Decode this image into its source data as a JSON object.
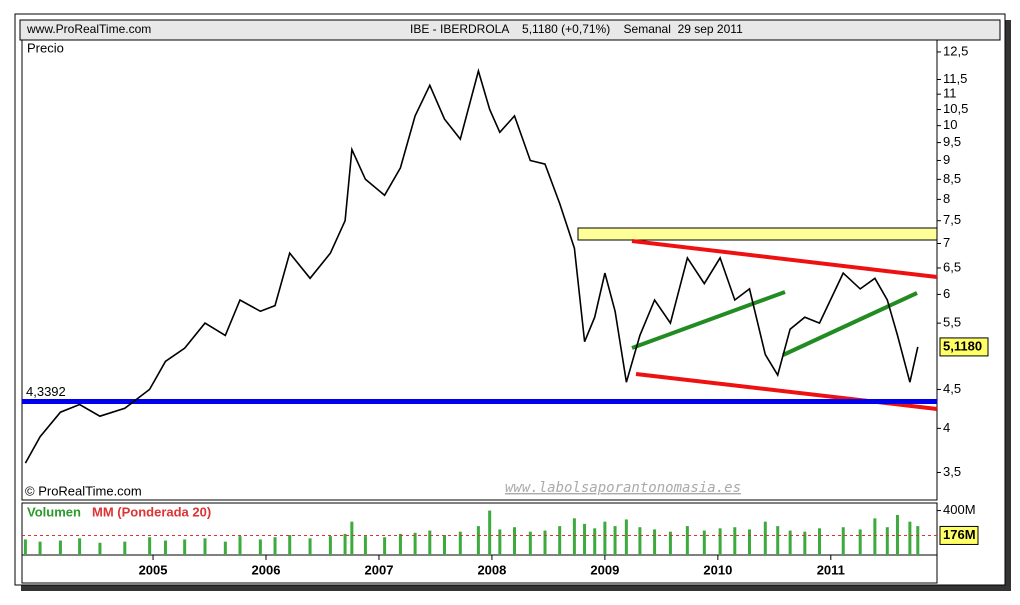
{
  "header": {
    "left": "www.ProRealTime.com",
    "center": "IBE - IBERDROLA    5,1180 (+0,71%)    Semanal  29 sep 2011",
    "copyright": "© ProRealTime.com",
    "watermark": "www.labolsaporantonomasia.es"
  },
  "chart_data": [
    {
      "type": "line",
      "title": "Precio",
      "color": "#000000",
      "log_scale": true,
      "x": [
        2003.87,
        2004.0,
        2004.18,
        2004.35,
        2004.53,
        2004.75,
        2004.97,
        2005.11,
        2005.28,
        2005.46,
        2005.64,
        2005.77,
        2005.95,
        2006.08,
        2006.21,
        2006.39,
        2006.57,
        2006.7,
        2006.76,
        2006.88,
        2007.05,
        2007.19,
        2007.32,
        2007.45,
        2007.58,
        2007.72,
        2007.88,
        2007.98,
        2008.07,
        2008.2,
        2008.34,
        2008.47,
        2008.6,
        2008.73,
        2008.82,
        2008.91,
        2009.0,
        2009.09,
        2009.19,
        2009.31,
        2009.44,
        2009.58,
        2009.73,
        2009.88,
        2010.02,
        2010.15,
        2010.28,
        2010.42,
        2010.53,
        2010.64,
        2010.77,
        2010.9,
        2011.11,
        2011.26,
        2011.39,
        2011.5,
        2011.59,
        2011.7,
        2011.77
      ],
      "values": [
        3.6,
        3.9,
        4.2,
        4.3,
        4.15,
        4.25,
        4.5,
        4.9,
        5.1,
        5.5,
        5.3,
        5.9,
        5.7,
        5.8,
        6.8,
        6.3,
        6.8,
        7.5,
        9.3,
        8.5,
        8.1,
        8.8,
        10.3,
        11.3,
        10.2,
        9.6,
        11.8,
        10.5,
        9.8,
        10.3,
        9.0,
        8.9,
        7.9,
        6.9,
        5.2,
        5.6,
        6.4,
        5.7,
        4.6,
        5.3,
        5.9,
        5.5,
        6.7,
        6.2,
        6.7,
        5.9,
        6.1,
        5.0,
        4.7,
        5.4,
        5.6,
        5.5,
        6.4,
        6.1,
        6.3,
        5.9,
        5.3,
        4.6,
        5.118
      ],
      "xlim": [
        2003.84,
        2011.94
      ],
      "ylim": [
        3.22,
        12.96
      ],
      "yticks": [
        {
          "value": 3.5,
          "label": "3,5"
        },
        4,
        {
          "value": 4.5,
          "label": "4,5"
        },
        {
          "value": 5.5,
          "label": "5,5"
        },
        6,
        {
          "value": 6.5,
          "label": "6,5"
        },
        7,
        {
          "value": 7.5,
          "label": "7,5"
        },
        8,
        {
          "value": 8.5,
          "label": "8,5"
        },
        9,
        {
          "value": 9.5,
          "label": "9,5"
        },
        10,
        {
          "value": 10.5,
          "label": "10,5"
        },
        11,
        {
          "value": 11.5,
          "label": "11,5"
        },
        {
          "value": 12.5,
          "label": "12,5"
        }
      ],
      "support": {
        "value": 4.3392,
        "label": "4,3392"
      },
      "support_color": "#0000ee",
      "last": {
        "value": 5.118,
        "label": "5,1180"
      }
    },
    {
      "type": "bar",
      "title": "Volumen",
      "subtitle": "MM (Ponderada 20)",
      "color": "#3caa3c",
      "x": [
        2003.87,
        2004.0,
        2004.18,
        2004.35,
        2004.53,
        2004.75,
        2004.97,
        2005.11,
        2005.28,
        2005.46,
        2005.64,
        2005.77,
        2005.95,
        2006.08,
        2006.21,
        2006.39,
        2006.57,
        2006.7,
        2006.76,
        2006.88,
        2007.05,
        2007.19,
        2007.32,
        2007.45,
        2007.58,
        2007.72,
        2007.88,
        2007.98,
        2008.07,
        2008.2,
        2008.34,
        2008.47,
        2008.6,
        2008.73,
        2008.82,
        2008.91,
        2009.0,
        2009.09,
        2009.19,
        2009.31,
        2009.44,
        2009.58,
        2009.73,
        2009.88,
        2010.02,
        2010.15,
        2010.28,
        2010.42,
        2010.53,
        2010.64,
        2010.77,
        2010.9,
        2011.11,
        2011.26,
        2011.39,
        2011.5,
        2011.59,
        2011.7,
        2011.77
      ],
      "values": [
        140,
        120,
        130,
        150,
        110,
        120,
        160,
        130,
        140,
        150,
        120,
        170,
        140,
        160,
        180,
        150,
        170,
        190,
        300,
        170,
        160,
        190,
        200,
        220,
        180,
        210,
        260,
        400,
        230,
        250,
        210,
        220,
        260,
        330,
        280,
        240,
        300,
        260,
        320,
        250,
        230,
        210,
        260,
        220,
        240,
        250,
        230,
        300,
        260,
        220,
        210,
        240,
        250,
        230,
        330,
        250,
        360,
        300,
        260
      ],
      "xlim": [
        2003.84,
        2011.94
      ],
      "ylim": [
        0,
        450
      ],
      "yticks": [
        {
          "value": 400,
          "label": "400M"
        }
      ],
      "last_ma": {
        "value": 176,
        "label": "176M"
      },
      "ma_color": "#dd3333",
      "xticks": [
        2005,
        2006,
        2007,
        2008,
        2009,
        2010,
        2011
      ]
    }
  ]
}
